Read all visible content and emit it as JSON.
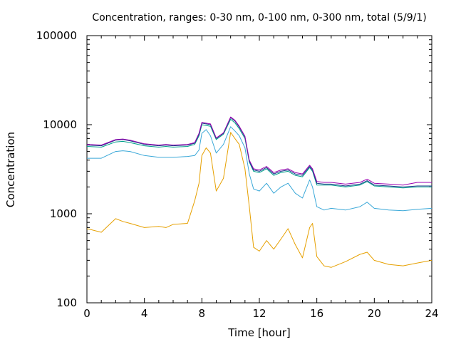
{
  "chart_data": {
    "type": "line",
    "title": "Concentration, ranges: 0-30 nm, 0-100 nm, 0-300 nm, total (5/9/1)",
    "xlabel": "Time [hour]",
    "ylabel": "Concentration",
    "xlim": [
      0,
      24
    ],
    "ylim": [
      100,
      100000
    ],
    "yscale": "log",
    "xticks": [
      "0",
      "4",
      "8",
      "12",
      "16",
      "20",
      "24"
    ],
    "yticks": [
      "100",
      "1000",
      "10000",
      "100000"
    ],
    "grid": false,
    "legend": "none",
    "x": [
      0,
      1,
      2,
      2.5,
      3,
      4,
      5,
      5.5,
      6,
      7,
      7.5,
      7.8,
      8,
      8.3,
      8.6,
      9,
      9.5,
      10,
      10.3,
      10.6,
      11,
      11.3,
      11.6,
      12,
      12.5,
      13,
      13.5,
      14,
      14.5,
      15,
      15.5,
      15.7,
      16,
      16.5,
      17,
      18,
      19,
      19.5,
      20,
      21,
      22,
      23,
      24
    ],
    "series": [
      {
        "color": "#e6a000",
        "values": [
          680,
          620,
          880,
          820,
          780,
          700,
          720,
          700,
          760,
          780,
          1400,
          2200,
          4500,
          5500,
          4800,
          1800,
          2500,
          8200,
          7000,
          6000,
          3200,
          1200,
          420,
          380,
          500,
          400,
          520,
          680,
          450,
          320,
          700,
          780,
          330,
          260,
          250,
          290,
          350,
          370,
          300,
          270,
          260,
          280,
          300
        ]
      },
      {
        "color": "#3aa8d8",
        "values": [
          4200,
          4200,
          5000,
          5100,
          5000,
          4500,
          4300,
          4300,
          4300,
          4400,
          4500,
          5200,
          8000,
          8800,
          7500,
          4800,
          6000,
          9500,
          8500,
          7500,
          5500,
          2800,
          1900,
          1800,
          2200,
          1700,
          2000,
          2200,
          1700,
          1500,
          2400,
          2000,
          1200,
          1100,
          1150,
          1100,
          1200,
          1350,
          1150,
          1100,
          1080,
          1120,
          1150
        ]
      },
      {
        "color": "#00a08a",
        "values": [
          5700,
          5600,
          6400,
          6500,
          6300,
          5800,
          5600,
          5700,
          5600,
          5700,
          6000,
          7500,
          10000,
          9800,
          9600,
          6800,
          7800,
          11500,
          10500,
          9000,
          7000,
          3800,
          3000,
          2900,
          3200,
          2700,
          2900,
          3000,
          2700,
          2600,
          3300,
          3000,
          2100,
          2100,
          2100,
          2000,
          2100,
          2300,
          2050,
          2000,
          1950,
          2000,
          2000
        ]
      },
      {
        "color": "#1a3a8a",
        "values": [
          5900,
          5800,
          6700,
          6800,
          6600,
          6000,
          5800,
          5900,
          5800,
          5900,
          6200,
          7800,
          10400,
          10200,
          10000,
          7000,
          8000,
          12000,
          11000,
          9400,
          7300,
          3900,
          3100,
          3000,
          3300,
          2800,
          3000,
          3100,
          2800,
          2700,
          3400,
          3100,
          2200,
          2150,
          2150,
          2050,
          2150,
          2350,
          2100,
          2050,
          2000,
          2050,
          2050
        ]
      },
      {
        "color": "#9a00b0",
        "values": [
          6000,
          5900,
          6800,
          6900,
          6700,
          6100,
          5900,
          6000,
          5900,
          6000,
          6300,
          8000,
          10600,
          10400,
          10200,
          7100,
          8100,
          12200,
          11200,
          9600,
          7400,
          4000,
          3200,
          3100,
          3400,
          2900,
          3100,
          3200,
          2900,
          2800,
          3500,
          3200,
          2300,
          2250,
          2250,
          2150,
          2250,
          2450,
          2200,
          2150,
          2100,
          2250,
          2250
        ]
      }
    ]
  }
}
